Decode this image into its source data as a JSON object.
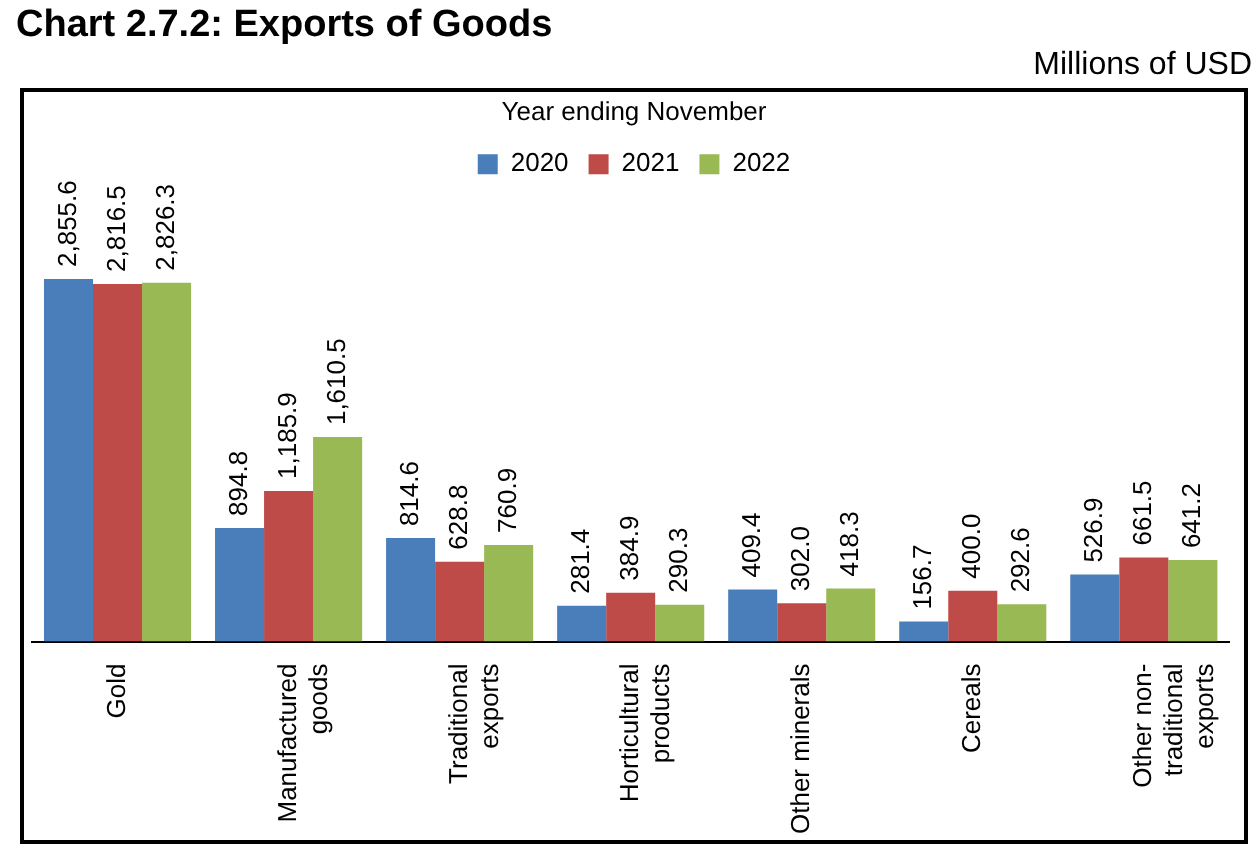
{
  "chart_data": {
    "type": "bar",
    "title": "Chart 2.7.2: Exports of Goods",
    "annotations": [
      "Millions of USD"
    ],
    "legend_title": "Year ending November",
    "legend": "top",
    "categories": [
      "Gold",
      "Manufactured goods",
      "Traditional exports",
      "Horticultural products",
      "Other minerals",
      "Cereals",
      "Other non-traditional exports"
    ],
    "series": [
      {
        "name": "2020",
        "color": "#4a7ebb",
        "values": [
          2855.6,
          894.8,
          814.6,
          281.4,
          409.4,
          156.7,
          526.9
        ],
        "value_labels": [
          "2,855.6",
          "894.8",
          "814.6",
          "281.4",
          "409.4",
          "156.7",
          "526.9"
        ]
      },
      {
        "name": "2021",
        "color": "#be4b48",
        "values": [
          2816.5,
          1185.9,
          628.8,
          384.9,
          302.0,
          400.0,
          661.5
        ],
        "value_labels": [
          "2,816.5",
          "1,185.9",
          "628.8",
          "384.9",
          "302.0",
          "400.0",
          "661.5"
        ]
      },
      {
        "name": "2022",
        "color": "#98b954",
        "values": [
          2826.3,
          1610.5,
          760.9,
          290.3,
          418.3,
          292.6,
          641.2
        ],
        "value_labels": [
          "2,826.3",
          "1,610.5",
          "760.9",
          "290.3",
          "418.3",
          "292.6",
          "641.2"
        ]
      }
    ],
    "grid": false
  }
}
